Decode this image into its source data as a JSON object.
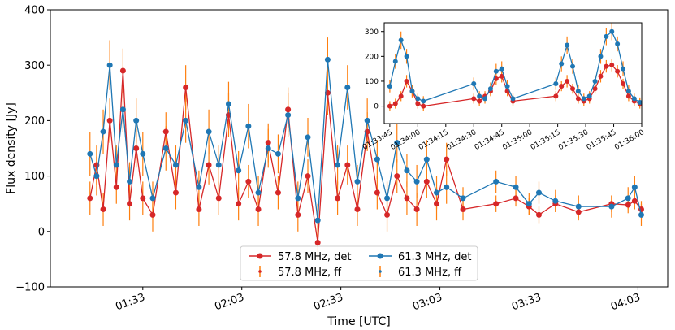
{
  "chart_data": [
    {
      "type": "line",
      "xlabel": "Time [UTC]",
      "ylabel": "Flux density [Jy]",
      "xlim": [
        "01:05",
        "04:12"
      ],
      "xticks": [
        "01:33",
        "02:03",
        "02:33",
        "03:03",
        "03:33",
        "04:03"
      ],
      "ylim": [
        -100,
        400
      ],
      "yticks": [
        {
          "value": -100,
          "label": "−100"
        },
        0,
        100,
        200,
        300,
        400
      ],
      "legend": "lower center",
      "x": [
        "01:17",
        "01:19",
        "01:21",
        "01:23",
        "01:25",
        "01:27",
        "01:29",
        "01:31",
        "01:33",
        "01:36",
        "01:40",
        "01:43",
        "01:46",
        "01:50",
        "01:53",
        "01:56",
        "01:59",
        "02:02",
        "02:05",
        "02:08",
        "02:11",
        "02:14",
        "02:17",
        "02:20",
        "02:23",
        "02:26",
        "02:29",
        "02:32",
        "02:35",
        "02:38",
        "02:41",
        "02:44",
        "02:47",
        "02:50",
        "02:53",
        "02:56",
        "02:59",
        "03:02",
        "03:05",
        "03:10",
        "03:20",
        "03:26",
        "03:30",
        "03:33",
        "03:38",
        "03:45",
        "03:55",
        "04:00",
        "04:02",
        "04:04"
      ],
      "series": [
        {
          "name": "57.8 MHz, det",
          "color": "#d62728",
          "values": [
            60,
            120,
            40,
            200,
            80,
            290,
            50,
            150,
            60,
            30,
            180,
            70,
            260,
            40,
            120,
            60,
            210,
            50,
            90,
            40,
            160,
            70,
            220,
            30,
            100,
            -20,
            250,
            60,
            120,
            40,
            180,
            70,
            30,
            100,
            60,
            40,
            90,
            50,
            130,
            40,
            50,
            60,
            45,
            30,
            50,
            35,
            50,
            48,
            55,
            40
          ]
        },
        {
          "name": "57.8 MHz, ff",
          "color": "#ff7f0e",
          "values": [
            60,
            120,
            40,
            200,
            80,
            290,
            50,
            150,
            60,
            30,
            180,
            70,
            260,
            40,
            120,
            60,
            210,
            50,
            90,
            40,
            160,
            70,
            220,
            30,
            100,
            -20,
            250,
            60,
            120,
            40,
            180,
            70,
            30,
            100,
            60,
            40,
            90,
            50,
            130,
            40,
            50,
            60,
            45,
            30,
            50,
            35,
            50,
            48,
            55,
            40
          ],
          "errors": [
            30,
            35,
            30,
            40,
            30,
            40,
            30,
            35,
            30,
            30,
            35,
            30,
            40,
            30,
            35,
            30,
            40,
            30,
            30,
            30,
            35,
            30,
            40,
            30,
            30,
            30,
            40,
            30,
            35,
            30,
            35,
            30,
            30,
            30,
            30,
            30,
            30,
            30,
            30,
            20,
            15,
            15,
            15,
            15,
            15,
            15,
            15,
            15,
            15,
            15
          ]
        },
        {
          "name": "61.3 MHz, det",
          "color": "#1f77b4",
          "values": [
            140,
            100,
            180,
            300,
            120,
            220,
            90,
            200,
            140,
            60,
            150,
            120,
            200,
            80,
            180,
            120,
            230,
            110,
            190,
            70,
            150,
            140,
            210,
            60,
            170,
            20,
            310,
            120,
            260,
            90,
            200,
            130,
            60,
            160,
            110,
            90,
            130,
            70,
            80,
            60,
            90,
            80,
            50,
            70,
            55,
            45,
            45,
            60,
            80,
            30
          ]
        },
        {
          "name": "61.3 MHz, ff",
          "color": "#ff7f0e",
          "values": [
            140,
            100,
            180,
            300,
            120,
            220,
            90,
            200,
            140,
            60,
            150,
            120,
            200,
            80,
            180,
            120,
            230,
            110,
            190,
            70,
            150,
            140,
            210,
            60,
            170,
            20,
            310,
            120,
            260,
            90,
            200,
            130,
            60,
            160,
            110,
            90,
            130,
            70,
            80,
            60,
            90,
            80,
            50,
            70,
            55,
            45,
            45,
            60,
            80,
            30
          ],
          "errors": [
            40,
            35,
            40,
            45,
            35,
            40,
            35,
            40,
            40,
            30,
            40,
            35,
            40,
            30,
            40,
            35,
            40,
            35,
            40,
            30,
            35,
            35,
            40,
            30,
            35,
            30,
            40,
            35,
            40,
            30,
            40,
            35,
            30,
            35,
            30,
            30,
            35,
            30,
            30,
            20,
            20,
            20,
            20,
            20,
            20,
            20,
            20,
            20,
            20,
            20
          ]
        }
      ]
    },
    {
      "type": "line",
      "xlim": [
        "01:33:42",
        "01:36:00"
      ],
      "xticks": [
        "01:33:45",
        "01:34:00",
        "01:34:15",
        "01:34:30",
        "01:34:45",
        "01:35:00",
        "01:35:15",
        "01:35:30",
        "01:35:45",
        "01:36:00"
      ],
      "ylim": [
        -70,
        335
      ],
      "yticks": [
        0,
        100,
        200,
        300
      ],
      "x": [
        "01:33:45",
        "01:33:48",
        "01:33:51",
        "01:33:54",
        "01:33:57",
        "01:34:00",
        "01:34:03",
        "01:34:30",
        "01:34:33",
        "01:34:36",
        "01:34:39",
        "01:34:42",
        "01:34:45",
        "01:34:48",
        "01:34:51",
        "01:35:14",
        "01:35:17",
        "01:35:20",
        "01:35:23",
        "01:35:26",
        "01:35:29",
        "01:35:32",
        "01:35:35",
        "01:35:38",
        "01:35:41",
        "01:35:44",
        "01:35:47",
        "01:35:50",
        "01:35:53",
        "01:35:56",
        "01:35:59"
      ],
      "series": [
        {
          "color": "#d62728",
          "values": [
            0,
            10,
            40,
            100,
            60,
            10,
            0,
            30,
            20,
            40,
            60,
            110,
            120,
            60,
            20,
            40,
            80,
            100,
            70,
            30,
            20,
            30,
            70,
            120,
            160,
            165,
            140,
            90,
            40,
            20,
            10
          ]
        },
        {
          "color": "#ff7f0e",
          "values": [
            0,
            10,
            40,
            100,
            60,
            10,
            0,
            30,
            20,
            40,
            60,
            110,
            120,
            60,
            20,
            40,
            80,
            100,
            70,
            30,
            20,
            30,
            70,
            120,
            160,
            165,
            140,
            90,
            40,
            20,
            10
          ],
          "errors": [
            20,
            20,
            20,
            25,
            20,
            20,
            20,
            20,
            20,
            20,
            20,
            25,
            25,
            20,
            20,
            20,
            20,
            25,
            20,
            20,
            20,
            20,
            20,
            25,
            25,
            25,
            25,
            20,
            20,
            20,
            20
          ]
        },
        {
          "color": "#1f77b4",
          "values": [
            80,
            180,
            265,
            200,
            60,
            30,
            20,
            90,
            40,
            30,
            70,
            140,
            150,
            80,
            30,
            90,
            170,
            245,
            160,
            60,
            30,
            40,
            100,
            200,
            280,
            300,
            250,
            150,
            60,
            30,
            15
          ]
        },
        {
          "color": "#ff7f0e",
          "values": [
            80,
            180,
            265,
            200,
            60,
            30,
            20,
            90,
            40,
            30,
            70,
            140,
            150,
            80,
            30,
            90,
            170,
            245,
            160,
            60,
            30,
            40,
            100,
            200,
            280,
            300,
            250,
            150,
            60,
            30,
            15
          ],
          "errors": [
            25,
            30,
            35,
            30,
            25,
            20,
            20,
            25,
            20,
            20,
            25,
            30,
            30,
            25,
            20,
            25,
            30,
            35,
            30,
            25,
            20,
            20,
            25,
            30,
            35,
            35,
            30,
            30,
            25,
            20,
            20
          ]
        }
      ]
    }
  ]
}
